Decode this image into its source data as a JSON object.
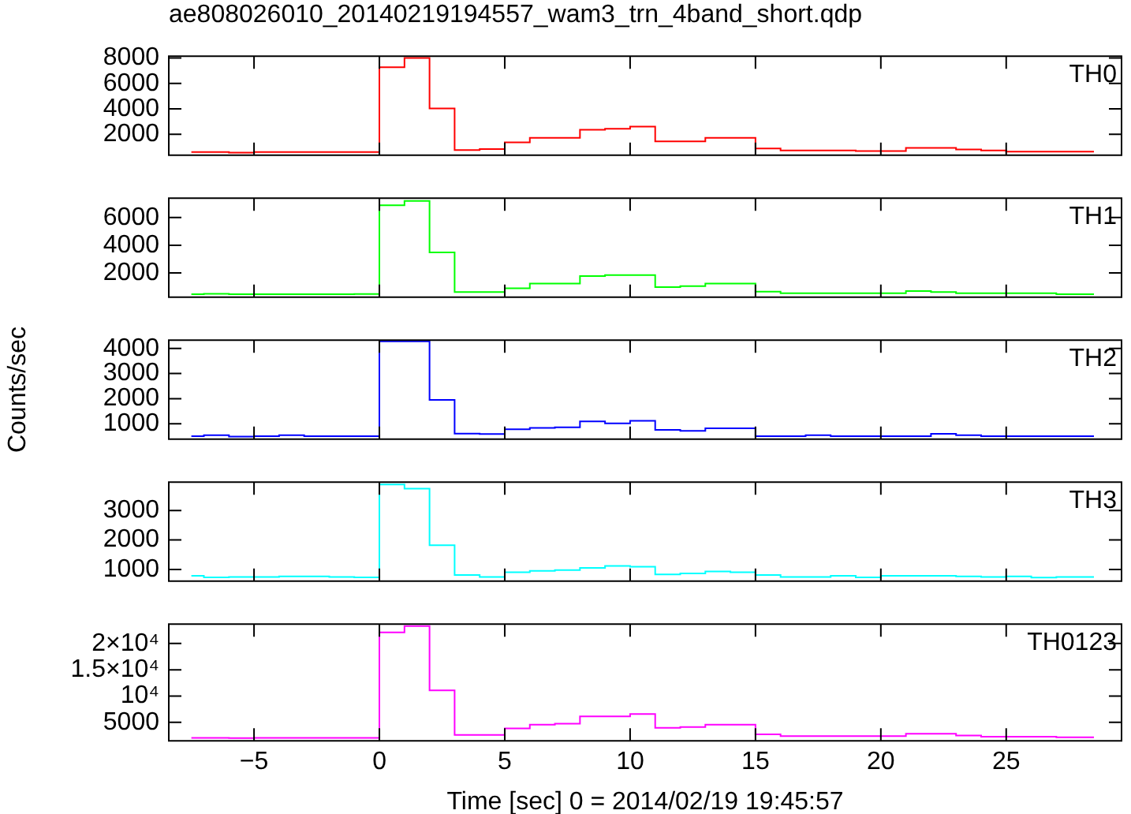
{
  "chart_data": [
    {
      "type": "step",
      "title": "ae808026010_20140219194557_wam3_trn_4band_short.qdp",
      "tick_labels": "y",
      "x": [
        -7.5,
        -6.5,
        -5.5,
        -4.5,
        -3.5,
        -2.5,
        -1.5,
        -0.5,
        0.5,
        1.5,
        2.5,
        3.5,
        4.5,
        5.5,
        6.5,
        7.5,
        8.5,
        9.5,
        10.5,
        11.5,
        12.5,
        13.5,
        14.5,
        15.5,
        16.5,
        17.5,
        18.5,
        19.5,
        20.5,
        21.5,
        22.5,
        23.5,
        24.5,
        25.5,
        26.5,
        27.5,
        28.5
      ],
      "xlim": [
        -8.4,
        29.6
      ],
      "xticks": [
        -5,
        0,
        5,
        10,
        15,
        20,
        25
      ],
      "ylim": [
        350,
        8150
      ],
      "yticks": [
        2000,
        4000,
        6000,
        8000
      ],
      "series": [
        {
          "name": "TH0",
          "color": "#ff0000",
          "values": [
            600,
            600,
            560,
            600,
            600,
            600,
            600,
            600,
            7280,
            8000,
            4040,
            760,
            840,
            1360,
            1720,
            1720,
            2360,
            2440,
            2600,
            1440,
            1440,
            1720,
            1720,
            880,
            720,
            720,
            720,
            680,
            680,
            920,
            920,
            800,
            720,
            640,
            640,
            640,
            640
          ]
        }
      ]
    },
    {
      "type": "step",
      "tick_labels": "y",
      "x": [
        -7.5,
        -6.5,
        -5.5,
        -4.5,
        -3.5,
        -2.5,
        -1.5,
        -0.5,
        0.5,
        1.5,
        2.5,
        3.5,
        4.5,
        5.5,
        6.5,
        7.5,
        8.5,
        9.5,
        10.5,
        11.5,
        12.5,
        13.5,
        14.5,
        15.5,
        16.5,
        17.5,
        18.5,
        19.5,
        20.5,
        21.5,
        22.5,
        23.5,
        24.5,
        25.5,
        26.5,
        27.5,
        28.5
      ],
      "xlim": [
        -8.4,
        29.6
      ],
      "xticks": [
        -5,
        0,
        5,
        10,
        15,
        20,
        25
      ],
      "ylim": [
        250,
        7400
      ],
      "yticks": [
        2000,
        4000,
        6000
      ],
      "series": [
        {
          "name": "TH1",
          "color": "#00ff00",
          "values": [
            470,
            490,
            470,
            470,
            470,
            470,
            470,
            480,
            6880,
            7200,
            3490,
            620,
            620,
            900,
            1240,
            1240,
            1780,
            1850,
            1850,
            980,
            1050,
            1240,
            1240,
            650,
            540,
            540,
            540,
            540,
            540,
            690,
            620,
            540,
            540,
            540,
            540,
            470,
            470
          ]
        }
      ]
    },
    {
      "type": "step",
      "tick_labels": "y",
      "ylabel": "Counts/sec",
      "x": [
        -7.5,
        -6.5,
        -5.5,
        -4.5,
        -3.5,
        -2.5,
        -1.5,
        -0.5,
        0.5,
        1.5,
        2.5,
        3.5,
        4.5,
        5.5,
        6.5,
        7.5,
        8.5,
        9.5,
        10.5,
        11.5,
        12.5,
        13.5,
        14.5,
        15.5,
        16.5,
        17.5,
        18.5,
        19.5,
        20.5,
        21.5,
        22.5,
        23.5,
        24.5,
        25.5,
        26.5,
        27.5,
        28.5
      ],
      "xlim": [
        -8.4,
        29.6
      ],
      "xticks": [
        -5,
        0,
        5,
        10,
        15,
        20,
        25
      ],
      "ylim": [
        390,
        4330
      ],
      "yticks": [
        1000,
        2000,
        3000,
        4000
      ],
      "series": [
        {
          "name": "TH2",
          "color": "#0000ff",
          "values": [
            510,
            550,
            490,
            510,
            550,
            510,
            510,
            510,
            4280,
            4280,
            1950,
            615,
            595,
            780,
            840,
            860,
            1100,
            1020,
            1120,
            760,
            720,
            820,
            820,
            510,
            510,
            550,
            510,
            510,
            510,
            510,
            600,
            550,
            510,
            510,
            510,
            510,
            510
          ]
        }
      ]
    },
    {
      "type": "step",
      "tick_labels": "y",
      "x": [
        -7.5,
        -6.5,
        -5.5,
        -4.5,
        -3.5,
        -2.5,
        -1.5,
        -0.5,
        0.5,
        1.5,
        2.5,
        3.5,
        4.5,
        5.5,
        6.5,
        7.5,
        8.5,
        9.5,
        10.5,
        11.5,
        12.5,
        13.5,
        14.5,
        15.5,
        16.5,
        17.5,
        18.5,
        19.5,
        20.5,
        21.5,
        22.5,
        23.5,
        24.5,
        25.5,
        26.5,
        27.5,
        28.5
      ],
      "xlim": [
        -8.4,
        29.6
      ],
      "xticks": [
        -5,
        0,
        5,
        10,
        15,
        20,
        25
      ],
      "ylim": [
        600,
        3970
      ],
      "yticks": [
        1000,
        2000,
        3000
      ],
      "series": [
        {
          "name": "TH3",
          "color": "#00ffff",
          "values": [
            780,
            730,
            740,
            740,
            760,
            760,
            740,
            730,
            3890,
            3750,
            1820,
            810,
            740,
            900,
            950,
            980,
            1050,
            1120,
            1090,
            830,
            860,
            930,
            900,
            810,
            740,
            740,
            780,
            730,
            780,
            780,
            780,
            760,
            740,
            760,
            720,
            740,
            740
          ]
        }
      ]
    },
    {
      "type": "step",
      "xlabel": "Time [sec] 0 = 2014/02/19 19:45:57",
      "x": [
        -7.5,
        -6.5,
        -5.5,
        -4.5,
        -3.5,
        -2.5,
        -1.5,
        -0.5,
        0.5,
        1.5,
        2.5,
        3.5,
        4.5,
        5.5,
        6.5,
        7.5,
        8.5,
        9.5,
        10.5,
        11.5,
        12.5,
        13.5,
        14.5,
        15.5,
        16.5,
        17.5,
        18.5,
        19.5,
        20.5,
        21.5,
        22.5,
        23.5,
        24.5,
        25.5,
        26.5,
        27.5,
        28.5
      ],
      "xlim": [
        -8.4,
        29.6
      ],
      "xticks": [
        {
          "value": -5,
          "label": "−5"
        },
        0,
        5,
        10,
        15,
        20,
        25
      ],
      "ylim": [
        1500,
        23700
      ],
      "yticks": [
        5000,
        {
          "value": 10000,
          "label": "10⁴"
        },
        {
          "value": 15000,
          "label": "1.5×10⁴"
        },
        {
          "value": 20000,
          "label": "2×10⁴"
        }
      ],
      "series": [
        {
          "name": "TH0123",
          "color": "#ff00ff",
          "values": [
            2070,
            2070,
            2000,
            2070,
            2070,
            2070,
            2070,
            2070,
            22100,
            23300,
            11100,
            2630,
            2630,
            3870,
            4550,
            4770,
            6130,
            6130,
            6580,
            3980,
            4100,
            4550,
            4550,
            2740,
            2400,
            2400,
            2400,
            2400,
            2400,
            2860,
            2860,
            2520,
            2290,
            2290,
            2290,
            2180,
            2180
          ]
        }
      ]
    }
  ]
}
